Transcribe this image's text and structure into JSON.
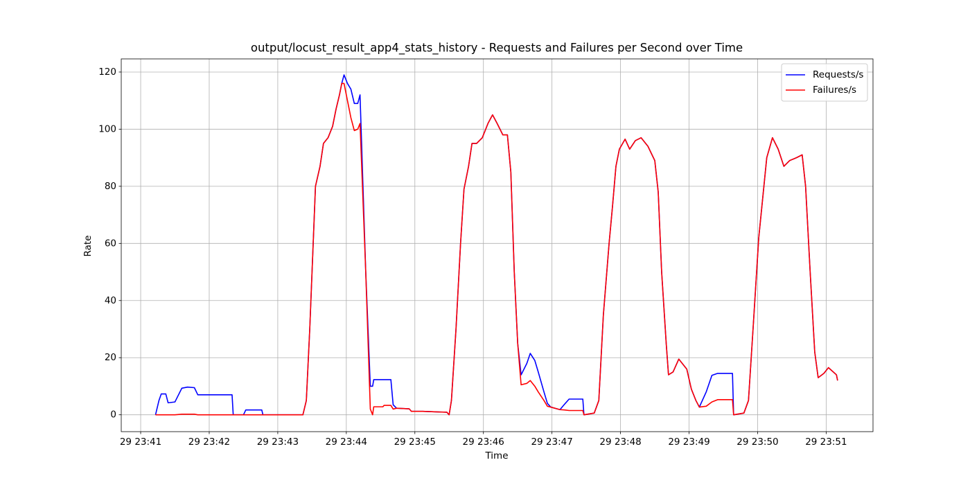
{
  "chart_data": {
    "type": "line",
    "title": "output/locust_result_app4_stats_history - Requests and Failures per Second over Time",
    "xlabel": "Time",
    "ylabel": "Rate",
    "x": [
      "29 23:41:13",
      "29 23:41:16",
      "29 23:41:18",
      "29 23:41:22",
      "29 23:41:24",
      "29 23:41:30",
      "29 23:41:36",
      "29 23:41:41",
      "29 23:41:47",
      "29 23:41:50",
      "29 23:42:20",
      "29 23:42:21",
      "29 23:42:30",
      "29 23:42:32",
      "29 23:42:46",
      "29 23:42:47",
      "29 23:43:22",
      "29 23:43:25",
      "29 23:43:28",
      "29 23:43:31",
      "29 23:43:33",
      "29 23:43:37",
      "29 23:43:40",
      "29 23:43:44",
      "29 23:43:48",
      "29 23:43:51",
      "29 23:43:54",
      "29 23:43:56",
      "29 23:43:58",
      "29 23:44:01",
      "29 23:44:04",
      "29 23:44:07",
      "29 23:44:10",
      "29 23:44:12",
      "29 23:44:17",
      "29 23:44:21",
      "29 23:44:23",
      "29 23:44:24",
      "29 23:44:32",
      "29 23:44:33",
      "29 23:44:39",
      "29 23:44:41",
      "29 23:44:44",
      "29 23:44:55",
      "29 23:44:57",
      "29 23:45:07",
      "29 23:45:28",
      "29 23:45:30",
      "29 23:45:32",
      "29 23:45:36",
      "29 23:45:40",
      "29 23:45:43",
      "29 23:45:47",
      "29 23:45:50",
      "29 23:45:54",
      "29 23:45:59",
      "29 23:46:04",
      "29 23:46:08",
      "29 23:46:12",
      "29 23:46:17",
      "29 23:46:21",
      "29 23:46:24",
      "29 23:46:27",
      "29 23:46:30",
      "29 23:46:33",
      "29 23:46:38",
      "29 23:46:41",
      "29 23:46:45",
      "29 23:46:48",
      "29 23:46:53",
      "29 23:46:56",
      "29 23:46:59",
      "29 23:47:07",
      "29 23:47:11",
      "29 23:47:15",
      "29 23:47:27",
      "29 23:47:28",
      "29 23:47:37",
      "29 23:47:41",
      "29 23:47:45",
      "29 23:47:50",
      "29 23:47:53",
      "29 23:47:56",
      "29 23:47:59",
      "29 23:48:04",
      "29 23:48:08",
      "29 23:48:13",
      "29 23:48:18",
      "29 23:48:24",
      "29 23:48:30",
      "29 23:48:33",
      "29 23:48:36",
      "29 23:48:40",
      "29 23:48:42",
      "29 23:48:46",
      "29 23:48:51",
      "29 23:48:58",
      "29 23:49:02",
      "29 23:49:06",
      "29 23:49:09",
      "29 23:49:15",
      "29 23:49:20",
      "29 23:49:25",
      "29 23:49:38",
      "29 23:49:39",
      "29 23:49:48",
      "29 23:49:52",
      "29 23:49:56",
      "29 23:50:01",
      "29 23:50:05",
      "29 23:50:08",
      "29 23:50:13",
      "29 23:50:18",
      "29 23:50:23",
      "29 23:50:28",
      "29 23:50:34",
      "29 23:50:39",
      "29 23:50:42",
      "29 23:50:46",
      "29 23:50:50",
      "29 23:50:53",
      "29 23:50:58",
      "29 23:51:02",
      "29 23:51:09",
      "29 23:51:10"
    ],
    "series": [
      {
        "name": "Requests/s",
        "color": "#0000ff",
        "values": [
          0,
          5,
          7.3,
          7.3,
          4.2,
          4.5,
          9.3,
          9.7,
          9.5,
          7,
          7,
          0,
          0,
          1.7,
          1.7,
          0,
          0,
          5,
          30,
          60,
          80,
          87,
          95,
          97,
          101,
          107,
          112,
          116,
          119,
          116,
          114,
          109,
          109,
          112,
          50,
          10,
          10,
          12.3,
          12.3,
          12.3,
          12.3,
          3.5,
          2.3,
          2.1,
          1.2,
          1.2,
          0.9,
          0,
          5,
          30,
          60,
          79,
          87,
          95,
          95,
          97,
          102,
          105,
          102,
          98,
          98,
          85,
          50,
          25,
          14,
          18,
          21.5,
          19,
          15,
          8,
          4,
          2.7,
          1.8,
          3.7,
          5.5,
          5.5,
          0,
          0.6,
          5,
          35,
          60,
          73,
          87,
          93,
          96.5,
          93,
          96,
          97,
          94,
          89,
          78,
          50,
          25,
          14,
          15,
          19.5,
          16,
          9,
          5,
          2.7,
          8,
          13.8,
          14.5,
          14.5,
          0,
          0.6,
          5,
          30,
          62,
          78,
          90,
          97,
          93,
          87,
          89,
          90,
          91,
          80,
          50,
          22,
          13,
          14.5,
          16.5,
          14,
          12
        ]
      },
      {
        "name": "Failures/s",
        "color": "#ff0000",
        "values": [
          0,
          0,
          0,
          0,
          0,
          0,
          0.2,
          0.2,
          0.2,
          0,
          0,
          0,
          0,
          0,
          0,
          0,
          0,
          5,
          30,
          60,
          80,
          87,
          95,
          97,
          101,
          107,
          112,
          116,
          116,
          110,
          104,
          99.5,
          100,
          102,
          50,
          2,
          0,
          2.8,
          2.8,
          3.3,
          3.3,
          2,
          2.3,
          2.1,
          1.2,
          1.2,
          0.9,
          0,
          5,
          30,
          60,
          79,
          87,
          95,
          95,
          97,
          102,
          105,
          102,
          98,
          98,
          85,
          50,
          25,
          10.5,
          11,
          12,
          10,
          8,
          5,
          3,
          2.7,
          1.8,
          1.7,
          1.5,
          1.5,
          0,
          0.6,
          5,
          35,
          60,
          73,
          87,
          93,
          96.5,
          93,
          96,
          97,
          94,
          89,
          78,
          50,
          25,
          14,
          15,
          19.5,
          16,
          9,
          5,
          2.7,
          3,
          4.5,
          5.3,
          5.3,
          0,
          0.6,
          5,
          30,
          62,
          78,
          90,
          97,
          93,
          87,
          89,
          90,
          91,
          80,
          50,
          22,
          13,
          14.5,
          16.5,
          14,
          12
        ]
      }
    ],
    "xlim": [
      "29 23:40:43",
      "29 23:51:41"
    ],
    "xticks": [
      "29 23:41",
      "29 23:42",
      "29 23:43",
      "29 23:44",
      "29 23:45",
      "29 23:46",
      "29 23:47",
      "29 23:48",
      "29 23:49",
      "29 23:50",
      "29 23:51"
    ],
    "ylim": [
      -5.9,
      124.6
    ],
    "yticks": [
      0,
      20,
      40,
      60,
      80,
      100,
      120
    ],
    "grid": true,
    "legend": "upper right"
  }
}
